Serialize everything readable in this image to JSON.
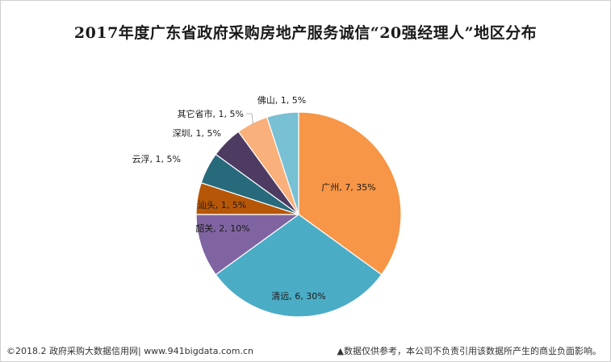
{
  "header": {
    "title": "2017年度广东省政府采购房地产服务诚信“20强经理人”地区分布"
  },
  "footer": {
    "source": "©2018.2 政府采购大数据信用网| www.941bigdata.com.cn",
    "disclaimer": "▲数据仅供参考，本公司不负责引用该数据所产生的商业负面影响。"
  },
  "chart_data": {
    "type": "pie",
    "title": "2017年度广东省政府采购房地产服务诚信“20强经理人”地区分布",
    "slices": [
      {
        "label": "广州",
        "value": 7,
        "percent": "35%",
        "color": "#F79646"
      },
      {
        "label": "清远",
        "value": 6,
        "percent": "30%",
        "color": "#4BACC6"
      },
      {
        "label": "韶关",
        "value": 2,
        "percent": "10%",
        "color": "#8064A2"
      },
      {
        "label": "汕头",
        "value": 1,
        "percent": "5%",
        "color": "#B65708"
      },
      {
        "label": "云浮",
        "value": 1,
        "percent": "5%",
        "color": "#276A7C"
      },
      {
        "label": "深圳",
        "value": 1,
        "percent": "5%",
        "color": "#4D3B62"
      },
      {
        "label": "其它省市",
        "value": 1,
        "percent": "5%",
        "color": "#FAB07A"
      },
      {
        "label": "佛山",
        "value": 1,
        "percent": "5%",
        "color": "#78C0D4"
      }
    ],
    "data_labels": "category, value, percent"
  }
}
